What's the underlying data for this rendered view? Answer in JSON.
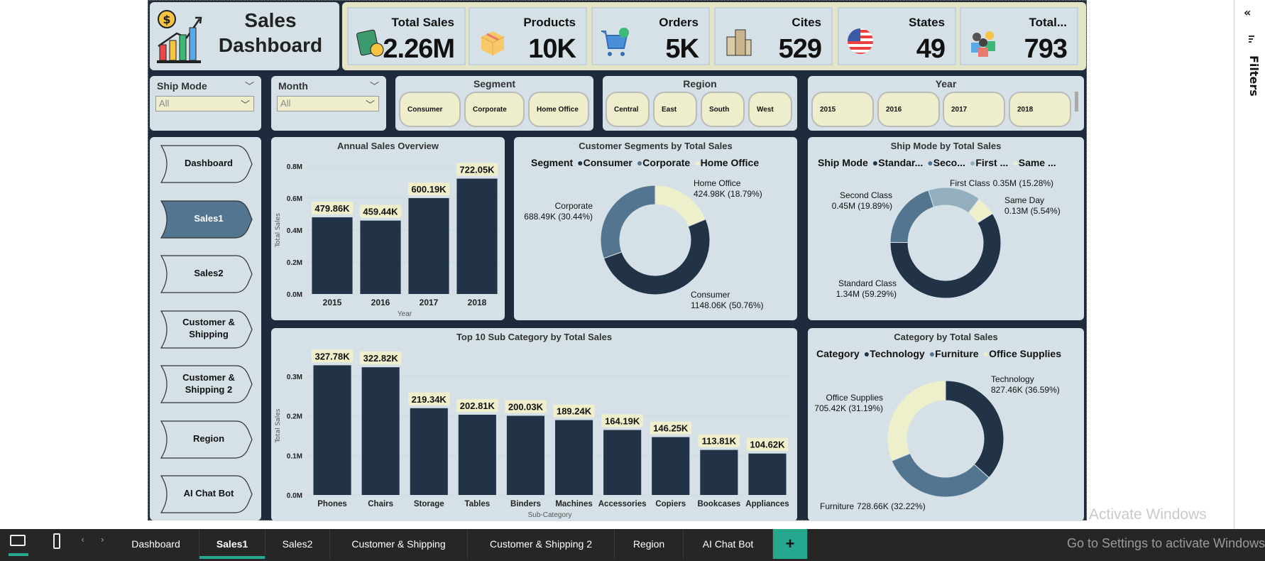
{
  "title": {
    "line1": "Sales",
    "line2": "Dashboard"
  },
  "kpis": [
    {
      "label": "Total Sales",
      "value": "2.26M",
      "icon": "money-icon"
    },
    {
      "label": "Products",
      "value": "10K",
      "icon": "box-icon"
    },
    {
      "label": "Orders",
      "value": "5K",
      "icon": "cart-icon"
    },
    {
      "label": "Cites",
      "value": "529",
      "icon": "city-icon"
    },
    {
      "label": "States",
      "value": "49",
      "icon": "us-flag-icon"
    },
    {
      "label": "Total...",
      "value": "793",
      "icon": "customers-icon"
    }
  ],
  "filters": {
    "ship_mode": {
      "label": "Ship Mode",
      "value": "All"
    },
    "month": {
      "label": "Month",
      "value": "All"
    },
    "segment": {
      "label": "Segment",
      "options": [
        "Consumer",
        "Corporate",
        "Home Office"
      ]
    },
    "region": {
      "label": "Region",
      "options": [
        "Central",
        "East",
        "South",
        "West"
      ]
    },
    "year": {
      "label": "Year",
      "options": [
        "2015",
        "2016",
        "2017",
        "2018"
      ]
    }
  },
  "nav": [
    {
      "label": "Dashboard",
      "active": false
    },
    {
      "label": "Sales1",
      "active": true
    },
    {
      "label": "Sales2",
      "active": false
    },
    {
      "label": "Customer & Shipping",
      "active": false
    },
    {
      "label": "Customer & Shipping 2",
      "active": false
    },
    {
      "label": "Region",
      "active": false
    },
    {
      "label": "AI Chat Bot",
      "active": false
    }
  ],
  "colors": {
    "navy": "#223247",
    "blue": "#54758f",
    "light_blue": "#93afbf",
    "cream": "#eef0cb",
    "label_bg": "#f0efcc",
    "accent": "#26a88f"
  },
  "chart_data": [
    {
      "type": "bar",
      "title": "Annual Sales Overview",
      "xlabel": "Year",
      "ylabel": "Total Sales",
      "categories": [
        "2015",
        "2016",
        "2017",
        "2018"
      ],
      "values": [
        479860,
        459440,
        600190,
        722050
      ],
      "labels": [
        "479.86K",
        "459.44K",
        "600.19K",
        "722.05K"
      ],
      "ylim": [
        0,
        800000
      ],
      "yticks": [
        "0.0M",
        "0.2M",
        "0.4M",
        "0.6M",
        "0.8M"
      ],
      "grid": true
    },
    {
      "type": "pie",
      "title": "Customer Segments by Total Sales",
      "legend_title": "Segment",
      "legend": [
        "Consumer",
        "Corporate",
        "Home Office"
      ],
      "slices": [
        {
          "name": "Home Office",
          "value": 424980,
          "label": "424.98K (18.79%)",
          "color": "#eef0cb"
        },
        {
          "name": "Consumer",
          "value": 1148060,
          "label": "1148.06K (50.76%)",
          "color": "#223247"
        },
        {
          "name": "Corporate",
          "value": 688490,
          "label": "688.49K (30.44%)",
          "color": "#54758f"
        }
      ]
    },
    {
      "type": "pie",
      "title": "Ship Mode by Total Sales",
      "legend_title": "Ship Mode",
      "legend": [
        "Standar...",
        "Seco...",
        "First ...",
        "Same ..."
      ],
      "slices": [
        {
          "name": "Standard Class",
          "value": 1340000,
          "label": "1.34M (59.29%)",
          "color": "#223247"
        },
        {
          "name": "Second Class",
          "value": 450000,
          "label": "0.45M (19.89%)",
          "color": "#54758f"
        },
        {
          "name": "First Class",
          "value": 350000,
          "label": "0.35M (15.28%)",
          "color": "#93afbf"
        },
        {
          "name": "Same Day",
          "value": 130000,
          "label": "0.13M (5.54%)",
          "color": "#eef0cb"
        }
      ]
    },
    {
      "type": "bar",
      "title": "Top 10 Sub Category by Total Sales",
      "xlabel": "Sub-Category",
      "ylabel": "Total Sales",
      "categories": [
        "Phones",
        "Chairs",
        "Storage",
        "Tables",
        "Binders",
        "Machines",
        "Accessories",
        "Copiers",
        "Bookcases",
        "Appliances"
      ],
      "values": [
        327780,
        322820,
        219340,
        202810,
        200030,
        189240,
        164190,
        146250,
        113810,
        104620
      ],
      "labels": [
        "327.78K",
        "322.82K",
        "219.34K",
        "202.81K",
        "200.03K",
        "189.24K",
        "164.19K",
        "146.25K",
        "113.81K",
        "104.62K"
      ],
      "ylim": [
        0,
        350000
      ],
      "yticks": [
        "0.0M",
        "0.1M",
        "0.2M",
        "0.3M"
      ],
      "grid": true
    },
    {
      "type": "pie",
      "title": "Category by Total Sales",
      "legend_title": "Category",
      "legend": [
        "Technology",
        "Furniture",
        "Office Supplies"
      ],
      "slices": [
        {
          "name": "Technology",
          "value": 827460,
          "label": "827.46K (36.59%)",
          "color": "#223247"
        },
        {
          "name": "Furniture",
          "value": 728660,
          "label": "728.66K (32.22%)",
          "color": "#54758f"
        },
        {
          "name": "Office Supplies",
          "value": 705420,
          "label": "705.42K (31.19%)",
          "color": "#eef0cb"
        }
      ]
    }
  ],
  "tabs": [
    {
      "label": "Dashboard"
    },
    {
      "label": "Sales1",
      "active": true
    },
    {
      "label": "Sales2"
    },
    {
      "label": "Customer & Shipping"
    },
    {
      "label": "Customer & Shipping 2"
    },
    {
      "label": "Region"
    },
    {
      "label": "AI Chat Bot"
    }
  ],
  "add_page": "+",
  "filters_pane": {
    "label": "Filters",
    "collapse": "«"
  },
  "watermark": {
    "line1": "Activate Windows",
    "line2": "Go to Settings to activate Windows"
  }
}
